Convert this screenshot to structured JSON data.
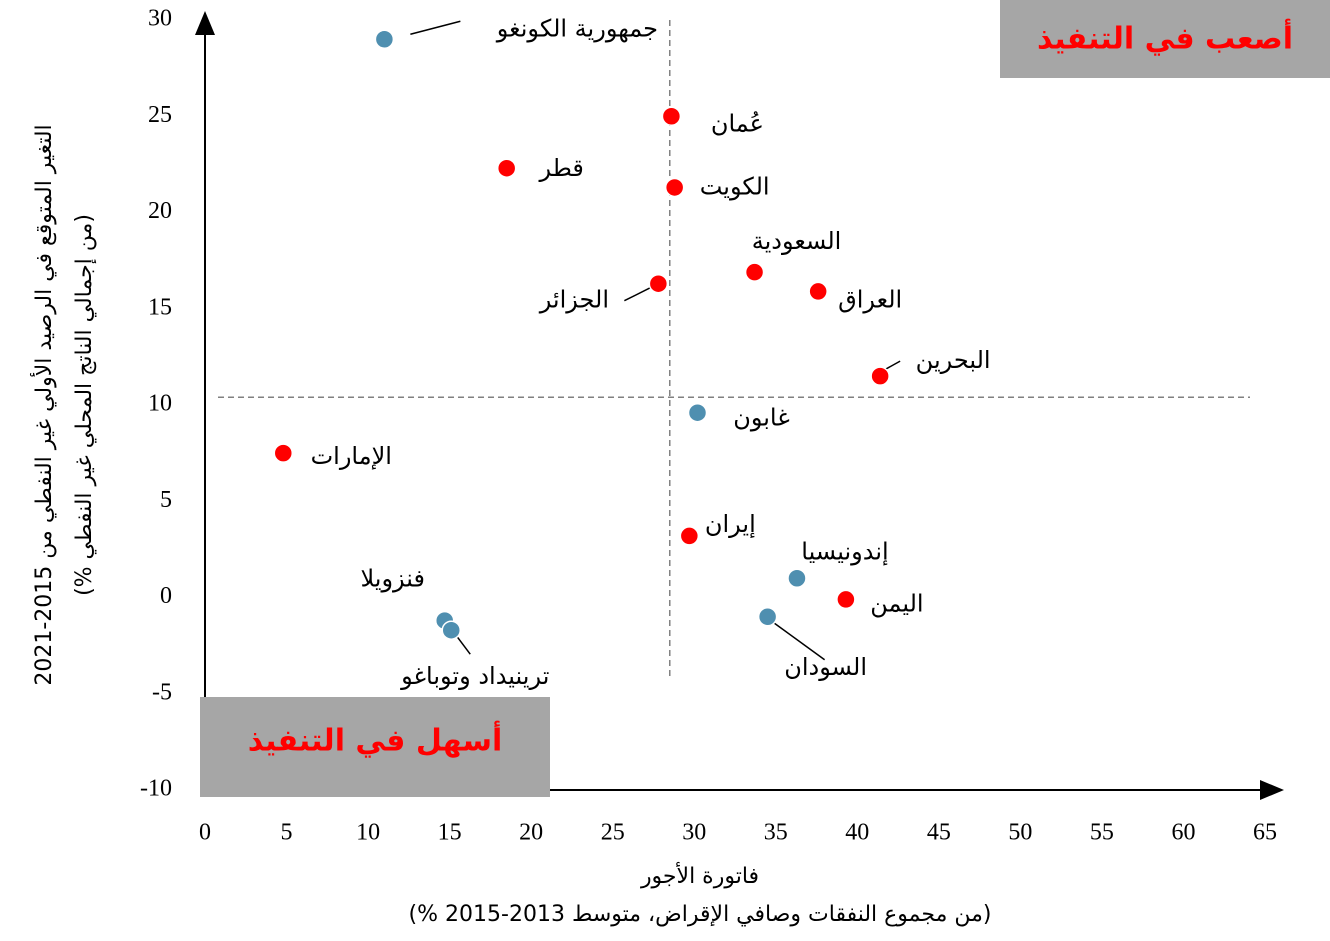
{
  "chart_data": {
    "type": "scatter",
    "x_label": [
      "فاتورة الأجور",
      "(% من مجموع النفقات وصافي الإقراض، متوسط 2013-2015)"
    ],
    "y_label": [
      "التغير المتوقع في الرصيد الأولي غير النفطي من 2015-2021",
      "(% من إجمالي الناتج المحلي غير النفطي)"
    ],
    "annotations": {
      "harder": "أصعب في التنفيذ",
      "easier": "أسهل في التنفيذ"
    },
    "reference_lines": {
      "x": 28.5,
      "y": 10.4
    },
    "xlim": [
      0,
      65
    ],
    "xticks": [
      0,
      5,
      10,
      15,
      20,
      25,
      30,
      35,
      40,
      45,
      50,
      55,
      60,
      65
    ],
    "ylim": [
      -10,
      30
    ],
    "yticks": [
      -10,
      -5,
      0,
      5,
      10,
      15,
      20,
      25,
      30
    ],
    "points": [
      {
        "name": "جمهورية الكونغو",
        "x": 11.0,
        "y": 29.0,
        "color": "#4f8fb0"
      },
      {
        "name": "عُمان",
        "x": 28.6,
        "y": 25.0,
        "color": "#ff0000"
      },
      {
        "name": "قطر",
        "x": 18.5,
        "y": 22.3,
        "color": "#ff0000"
      },
      {
        "name": "الكويت",
        "x": 28.8,
        "y": 21.3,
        "color": "#ff0000"
      },
      {
        "name": "السعودية",
        "x": 33.7,
        "y": 16.9,
        "color": "#ff0000"
      },
      {
        "name": "العراق",
        "x": 37.6,
        "y": 15.9,
        "color": "#ff0000"
      },
      {
        "name": "الجزائر",
        "x": 27.8,
        "y": 16.3,
        "color": "#ff0000"
      },
      {
        "name": "البحرين",
        "x": 41.4,
        "y": 11.5,
        "color": "#ff0000"
      },
      {
        "name": "غابون",
        "x": 30.2,
        "y": 9.6,
        "color": "#4f8fb0"
      },
      {
        "name": "الإمارات",
        "x": 4.8,
        "y": 7.5,
        "color": "#ff0000"
      },
      {
        "name": "إيران",
        "x": 29.7,
        "y": 3.2,
        "color": "#ff0000"
      },
      {
        "name": "إندونيسيا",
        "x": 36.3,
        "y": 1.0,
        "color": "#4f8fb0"
      },
      {
        "name": "اليمن",
        "x": 39.3,
        "y": -0.1,
        "color": "#ff0000"
      },
      {
        "name": "السودان",
        "x": 34.5,
        "y": -1.0,
        "color": "#4f8fb0"
      },
      {
        "name": "فنزويلا",
        "x": 14.7,
        "y": -1.2,
        "color": "#4f8fb0"
      },
      {
        "name": "ترينيداد وتوباغو",
        "x": 15.1,
        "y": -1.7,
        "color": "#4f8fb0"
      }
    ]
  }
}
